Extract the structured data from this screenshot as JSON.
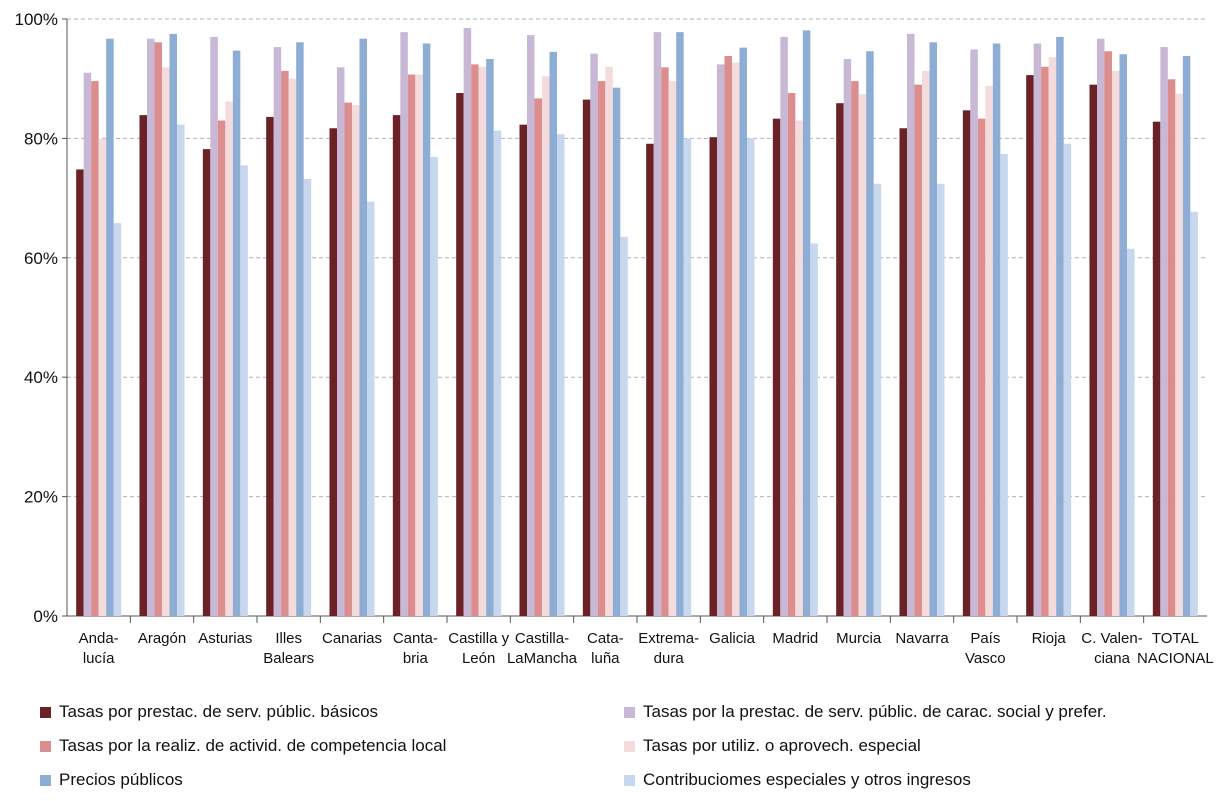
{
  "chart_data": {
    "type": "bar",
    "categories": [
      [
        "Anda-",
        "lucía"
      ],
      [
        "Aragón"
      ],
      [
        "Asturias"
      ],
      [
        "Illes",
        "Balears"
      ],
      [
        "Canarias"
      ],
      [
        "Canta-",
        "bria"
      ],
      [
        "Castilla y",
        "León"
      ],
      [
        "Castilla-",
        "LaMancha"
      ],
      [
        "Cata-",
        "luña"
      ],
      [
        "Extrema-",
        "dura"
      ],
      [
        "Galicia"
      ],
      [
        "Madrid"
      ],
      [
        "Murcia"
      ],
      [
        "Navarra"
      ],
      [
        "País",
        "Vasco"
      ],
      [
        "Rioja"
      ],
      [
        "C. Valen-",
        "ciana"
      ],
      [
        "TOTAL",
        "NACIONAL"
      ]
    ],
    "series": [
      {
        "name": "Tasas por prestac. de serv. públic. básicos",
        "color": "#6b2226",
        "values": [
          74.8,
          83.9,
          78.2,
          83.6,
          81.7,
          83.9,
          87.6,
          82.3,
          86.5,
          79.1,
          80.2,
          83.3,
          85.9,
          81.7,
          84.7,
          90.6,
          89.0,
          82.8
        ]
      },
      {
        "name": "Tasas por la prestac. de serv. públic. de carac. social y prefer.",
        "color": "#c8b8d6",
        "values": [
          91.0,
          96.7,
          97.0,
          95.3,
          91.9,
          97.8,
          98.5,
          97.3,
          94.2,
          97.8,
          92.4,
          97.0,
          93.3,
          97.5,
          94.9,
          95.9,
          96.7,
          95.3
        ]
      },
      {
        "name": "Tasas por la realiz. de activid. de competencia local",
        "color": "#dc8e8e",
        "values": [
          89.6,
          96.1,
          83.0,
          91.3,
          86.0,
          90.7,
          92.4,
          86.7,
          89.6,
          91.9,
          93.8,
          87.6,
          89.6,
          89.0,
          83.3,
          92.0,
          94.6,
          89.9
        ]
      },
      {
        "name": "Tasas por utiliz. o aprovech. especial",
        "color": "#f4dcdc",
        "values": [
          79.9,
          91.9,
          86.2,
          90.0,
          85.6,
          90.7,
          92.0,
          90.4,
          92.0,
          89.6,
          92.7,
          83.0,
          87.4,
          91.3,
          88.8,
          93.6,
          91.3,
          87.5
        ]
      },
      {
        "name": "Precios públicos",
        "color": "#8eadd4",
        "values": [
          96.7,
          97.5,
          94.7,
          96.1,
          96.7,
          95.9,
          93.3,
          94.5,
          88.5,
          97.8,
          95.2,
          98.1,
          94.6,
          96.1,
          95.9,
          97.0,
          94.1,
          93.8
        ]
      },
      {
        "name": "Contribuciomes especiales y otros ingresos",
        "color": "#c6d7ee",
        "values": [
          65.8,
          82.3,
          75.5,
          73.2,
          69.4,
          76.9,
          81.3,
          80.7,
          63.5,
          80.0,
          80.0,
          62.4,
          72.4,
          72.4,
          77.4,
          79.1,
          61.5,
          67.7
        ]
      }
    ],
    "yticks": [
      "0%",
      "20%",
      "40%",
      "60%",
      "80%",
      "100%"
    ],
    "ytick_values": [
      0,
      20,
      40,
      60,
      80,
      100
    ],
    "ylim": [
      0,
      100
    ],
    "grid": true,
    "legend_position": "bottom"
  }
}
